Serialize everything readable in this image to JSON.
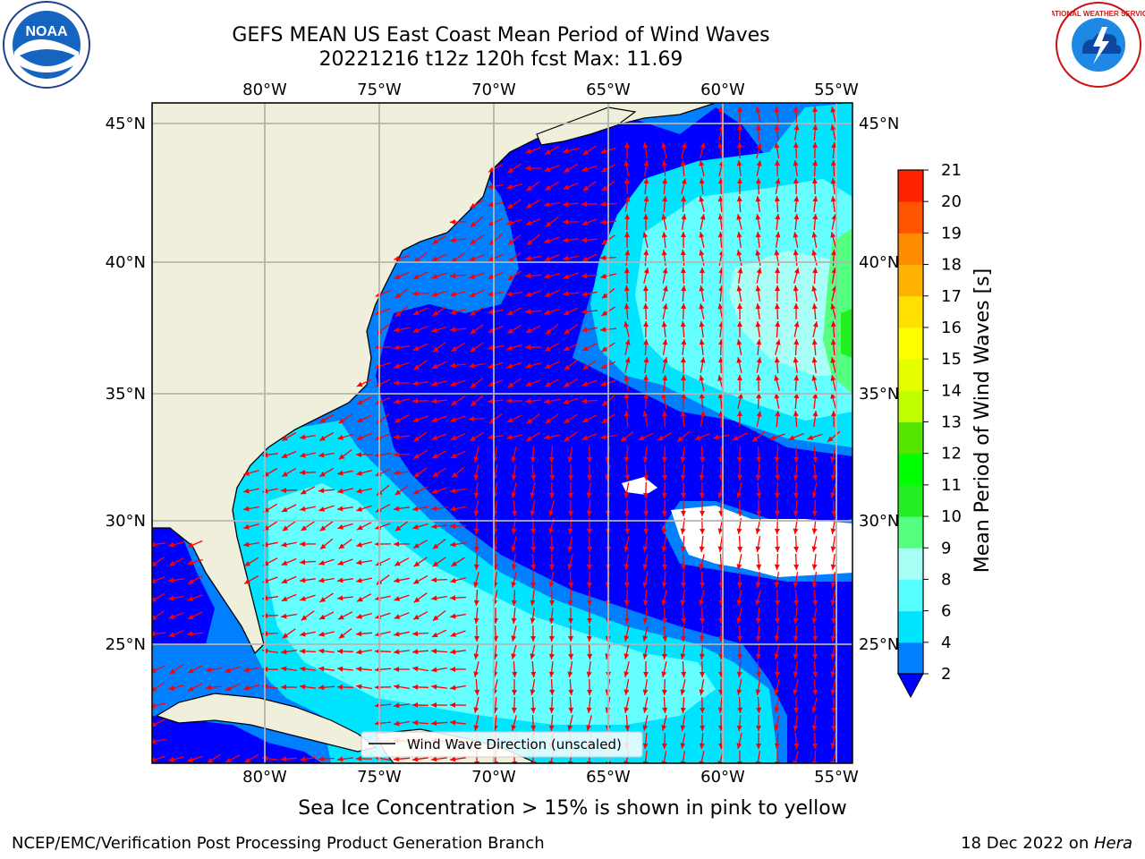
{
  "title": {
    "line1": "GEFS MEAN US East Coast Mean Period of Wind Waves",
    "line2": "20221216 t12z 120h fcst   Max: 11.69"
  },
  "map": {
    "lon_labels": [
      "80°W",
      "75°W",
      "70°W",
      "65°W",
      "60°W",
      "55°W"
    ],
    "lat_labels": [
      "45°N",
      "40°N",
      "35°N",
      "30°N",
      "25°N"
    ],
    "legend_label": "Wind Wave Direction (unscaled)",
    "colors": {
      "land": "#efefdc",
      "band_2_4": "#0080ff",
      "band_4_6": "#00e5ff",
      "band_6_8": "#66ffff",
      "band_8_9": "#a8fff5",
      "below_2": "#0000ff",
      "arrows": "#ff0000",
      "grid": "#b4b4b4"
    }
  },
  "colorbar": {
    "label": "Mean Period of Wind Waves [s]",
    "ticks": [
      "2",
      "4",
      "6",
      "8",
      "9",
      "10",
      "11",
      "12",
      "13",
      "14",
      "15",
      "16",
      "17",
      "18",
      "19",
      "20",
      "21"
    ],
    "colors": [
      "#0080ff",
      "#00e5ff",
      "#55ffff",
      "#a8fff5",
      "#55ff80",
      "#22ee22",
      "#00ff00",
      "#55e600",
      "#bfff00",
      "#e5ff00",
      "#ffff00",
      "#ffe000",
      "#ffb300",
      "#ff8c00",
      "#ff5500",
      "#ff2200",
      "#ff0000"
    ],
    "extend_color": "#0000ff"
  },
  "note": "Sea Ice Concentration > 15% is shown in pink to yellow",
  "footer": {
    "credit": "NCEP/EMC/Verification Post Processing Product Generation Branch",
    "date": "18 Dec 2022 on ",
    "host": "Hera"
  },
  "logos": {
    "noaa_text": "NOAA",
    "nws_text": "NATIONAL WEATHER SERVICE"
  }
}
